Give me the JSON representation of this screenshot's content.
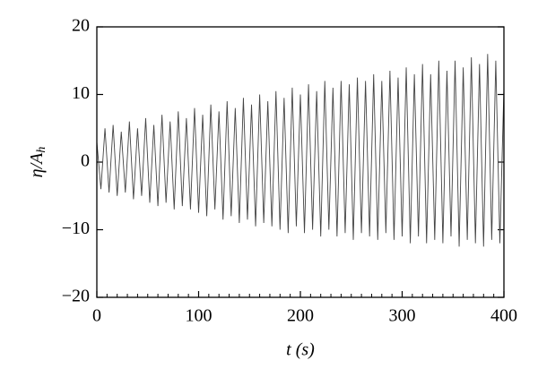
{
  "chart_data": {
    "type": "line",
    "xlabel": "t (s)",
    "ylabel_main": "η/A",
    "ylabel_sub": "h",
    "x": [
      0,
      4,
      8,
      12,
      16,
      20,
      24,
      28,
      32,
      36,
      40,
      44,
      48,
      52,
      56,
      60,
      64,
      68,
      72,
      76,
      80,
      84,
      88,
      92,
      96,
      100,
      104,
      108,
      112,
      116,
      120,
      124,
      128,
      132,
      136,
      140,
      144,
      148,
      152,
      156,
      160,
      164,
      168,
      172,
      176,
      180,
      184,
      188,
      192,
      196,
      200,
      204,
      208,
      212,
      216,
      220,
      224,
      228,
      232,
      236,
      240,
      244,
      248,
      252,
      256,
      260,
      264,
      268,
      272,
      276,
      280,
      284,
      288,
      292,
      296,
      300,
      304,
      308,
      312,
      316,
      320,
      324,
      328,
      332,
      336,
      340,
      344,
      348,
      352,
      356,
      360,
      364,
      368,
      372,
      376,
      380,
      384,
      388,
      392,
      396,
      400
    ],
    "values": [
      3,
      -4,
      5,
      -4.5,
      5.5,
      -5,
      4.5,
      -4.5,
      6,
      -5.5,
      5,
      -5,
      6.5,
      -6,
      5.5,
      -6.5,
      7,
      -6,
      6,
      -7,
      7.5,
      -6.5,
      6.5,
      -7,
      8,
      -7.5,
      7,
      -8,
      8.5,
      -7,
      7.5,
      -8.5,
      9,
      -8,
      8,
      -9,
      9.5,
      -8.5,
      8.5,
      -9.5,
      10,
      -9,
      9,
      -9.5,
      10.5,
      -10,
      9.5,
      -10.5,
      11,
      -9.5,
      10,
      -10.5,
      11.5,
      -10,
      10.5,
      -11,
      12,
      -10,
      11,
      -11,
      12,
      -10.5,
      11.5,
      -11.5,
      12.5,
      -10.5,
      12,
      -11,
      13,
      -11.5,
      12,
      -10.5,
      13.5,
      -11.5,
      12.5,
      -11,
      14,
      -12,
      13,
      -11,
      14.5,
      -12,
      13,
      -11.5,
      15,
      -12,
      13.5,
      -11,
      15,
      -12.5,
      14,
      -11.5,
      15.5,
      -12,
      14.5,
      -12.5,
      16,
      -11.5,
      15,
      -12,
      11
    ],
    "color": "#444444",
    "xlim": [
      0,
      400
    ],
    "xticks": [
      0,
      100,
      200,
      300,
      400
    ],
    "ylim": [
      -20,
      20
    ],
    "yticks": [
      {
        "value": -20,
        "label": "−20"
      },
      {
        "value": -10,
        "label": "−10"
      },
      0,
      10,
      20
    ]
  }
}
